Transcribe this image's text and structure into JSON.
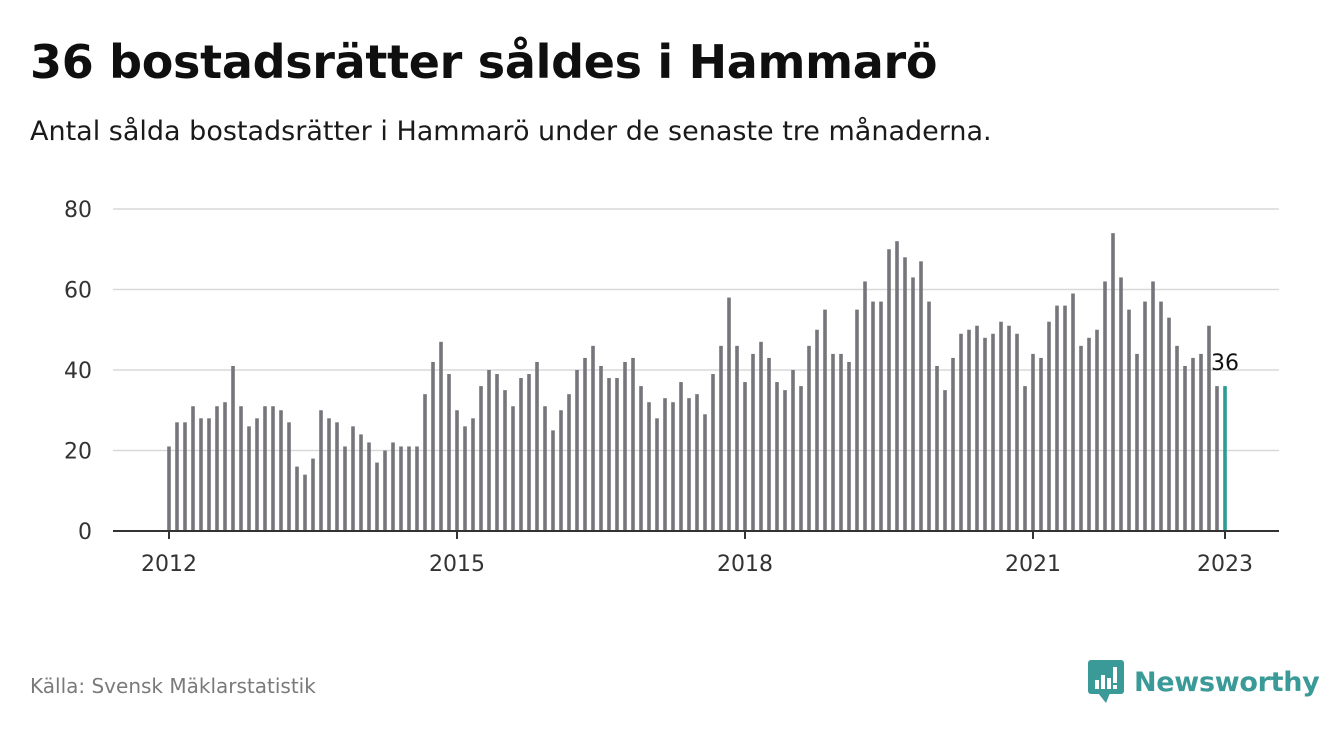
{
  "header": {
    "title": "36 bostadsrätter såldes i Hammarö",
    "subtitle": "Antal sålda bostadsrätter i Hammarö under de senaste tre månaderna."
  },
  "footer": {
    "source": "Källa: Svensk Mäklarstatistik",
    "brand_name": "Newsworthy",
    "brand_icon": "bar-chart-speech-bubble-icon"
  },
  "colors": {
    "bar": "#76757b",
    "highlight": "#2a9d93",
    "grid": "#d9d9d9",
    "axis": "#333333",
    "brand": "#3a9a97"
  },
  "chart_data": {
    "type": "bar",
    "title": "36 bostadsrätter såldes i Hammarö",
    "subtitle": "Antal sålda bostadsrätter i Hammarö under de senaste tre månaderna.",
    "xlabel": "",
    "ylabel": "",
    "ylim": [
      0,
      80
    ],
    "yticks": [
      0,
      20,
      40,
      60,
      80
    ],
    "xticks": [
      "2012",
      "2015",
      "2018",
      "2021",
      "2023"
    ],
    "grid": true,
    "legend": "none",
    "x_start": "2012-01",
    "x_end": "2023-01",
    "highlight_last": true,
    "last_label": "36",
    "values": [
      21,
      27,
      27,
      31,
      28,
      28,
      31,
      32,
      41,
      31,
      26,
      28,
      31,
      31,
      30,
      27,
      16,
      14,
      18,
      30,
      28,
      27,
      21,
      26,
      24,
      22,
      17,
      20,
      22,
      21,
      21,
      21,
      34,
      42,
      47,
      39,
      30,
      26,
      28,
      36,
      40,
      39,
      35,
      31,
      38,
      39,
      42,
      31,
      25,
      30,
      34,
      40,
      43,
      46,
      41,
      38,
      38,
      42,
      43,
      36,
      32,
      28,
      33,
      32,
      37,
      33,
      34,
      29,
      39,
      46,
      58,
      46,
      37,
      44,
      47,
      43,
      37,
      35,
      40,
      36,
      46,
      50,
      55,
      44,
      44,
      42,
      55,
      62,
      57,
      57,
      70,
      72,
      68,
      63,
      67,
      57,
      41,
      35,
      43,
      49,
      50,
      51,
      48,
      49,
      52,
      51,
      49,
      36,
      44,
      43,
      52,
      56,
      56,
      59,
      46,
      48,
      50,
      62,
      74,
      63,
      55,
      44,
      57,
      62,
      57,
      53,
      46,
      41,
      43,
      44,
      51,
      36,
      36
    ]
  }
}
